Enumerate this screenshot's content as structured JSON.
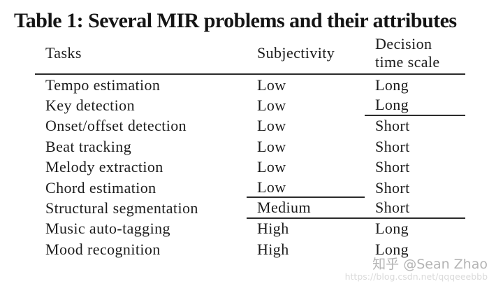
{
  "title": "Table 1: Several MIR problems and their attributes",
  "table": {
    "headers": {
      "tasks": "Tasks",
      "subjectivity": "Subjectivity",
      "decision_line1": "Decision",
      "decision_line2": "time scale"
    },
    "rows": [
      {
        "task": "Tempo estimation",
        "subjectivity": "Low",
        "decision": "Long"
      },
      {
        "task": "Key detection",
        "subjectivity": "Low",
        "decision": "Long"
      },
      {
        "task": "Onset/offset detection",
        "subjectivity": "Low",
        "decision": "Short"
      },
      {
        "task": "Beat tracking",
        "subjectivity": "Low",
        "decision": "Short"
      },
      {
        "task": "Melody extraction",
        "subjectivity": "Low",
        "decision": "Short"
      },
      {
        "task": "Chord estimation",
        "subjectivity": "Low",
        "decision": "Short"
      },
      {
        "task": "Structural segmentation",
        "subjectivity": "Medium",
        "decision": "Short"
      },
      {
        "task": "Music auto-tagging",
        "subjectivity": "High",
        "decision": "Long"
      },
      {
        "task": "Mood recognition",
        "subjectivity": "High",
        "decision": "Long"
      }
    ]
  },
  "watermark": {
    "text": "知乎 @Sean Zhao",
    "url": "https://blog.csdn.net/qqqeeebbb"
  },
  "colors": {
    "background": "#ffffff",
    "text": "#1c1c1c",
    "rule": "#2b2b2b",
    "watermark_text": "#b4b4b4",
    "watermark_url": "#dadada"
  }
}
